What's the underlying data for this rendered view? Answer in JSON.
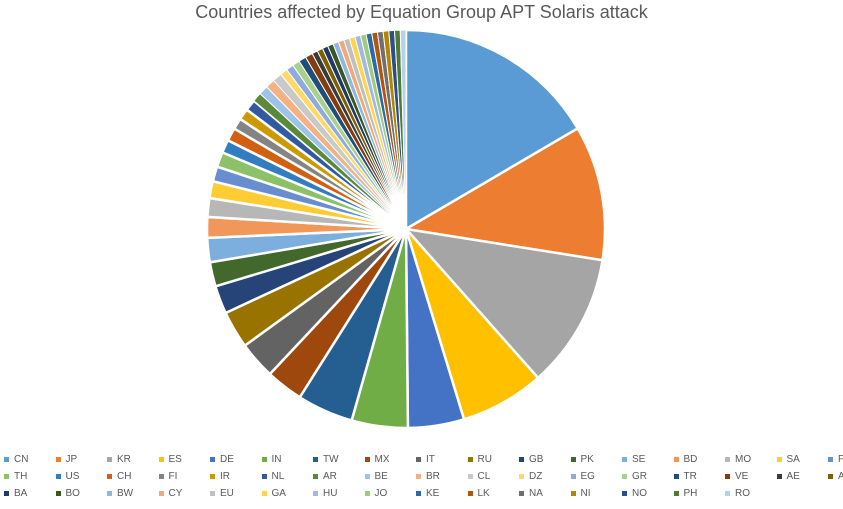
{
  "chart_data": {
    "type": "pie",
    "title": "Countries affected by Equation Group APT Solaris attack",
    "legend_position": "bottom",
    "slices": [
      {
        "label": "CN",
        "value": 0.173,
        "color": "#5B9BD5"
      },
      {
        "label": "JP",
        "value": 0.1143,
        "color": "#ED7D31"
      },
      {
        "label": "KR",
        "value": 0.1143,
        "color": "#A5A5A5"
      },
      {
        "label": "ES",
        "value": 0.0714,
        "color": "#FFC000"
      },
      {
        "label": "DE",
        "value": 0.0476,
        "color": "#4472C4"
      },
      {
        "label": "IN",
        "value": 0.0476,
        "color": "#70AD47"
      },
      {
        "label": "TW",
        "value": 0.0476,
        "color": "#255E91"
      },
      {
        "label": "MX",
        "value": 0.0317,
        "color": "#9E480E"
      },
      {
        "label": "IT",
        "value": 0.0317,
        "color": "#636363"
      },
      {
        "label": "RU",
        "value": 0.0317,
        "color": "#997300"
      },
      {
        "label": "GB",
        "value": 0.0238,
        "color": "#264478"
      },
      {
        "label": "PK",
        "value": 0.0206,
        "color": "#43682B"
      },
      {
        "label": "SE",
        "value": 0.0206,
        "color": "#7CAFDD"
      },
      {
        "label": "BD",
        "value": 0.0175,
        "color": "#F1975A"
      },
      {
        "label": "MO",
        "value": 0.0159,
        "color": "#B7B7B7"
      },
      {
        "label": "SA",
        "value": 0.0143,
        "color": "#FFCD33"
      },
      {
        "label": "PL",
        "value": 0.0127,
        "color": "#698ED0"
      },
      {
        "label": "TH",
        "value": 0.0127,
        "color": "#8CC168"
      },
      {
        "label": "US",
        "value": 0.0111,
        "color": "#327DC2"
      },
      {
        "label": "CH",
        "value": 0.0111,
        "color": "#D26012"
      },
      {
        "label": "FI",
        "value": 0.0095,
        "color": "#848484"
      },
      {
        "label": "IR",
        "value": 0.0095,
        "color": "#CC9A00"
      },
      {
        "label": "NL",
        "value": 0.0095,
        "color": "#335AA1"
      },
      {
        "label": "AR",
        "value": 0.0079,
        "color": "#5A8A39"
      },
      {
        "label": "BE",
        "value": 0.0079,
        "color": "#9DC3E6"
      },
      {
        "label": "BR",
        "value": 0.0079,
        "color": "#F4B183"
      },
      {
        "label": "CL",
        "value": 0.0079,
        "color": "#C9C9C9"
      },
      {
        "label": "DZ",
        "value": 0.0063,
        "color": "#FFD966"
      },
      {
        "label": "EG",
        "value": 0.0063,
        "color": "#8FAADC"
      },
      {
        "label": "GR",
        "value": 0.0063,
        "color": "#A9D18E"
      },
      {
        "label": "TR",
        "value": 0.0063,
        "color": "#1F4E79"
      },
      {
        "label": "VE",
        "value": 0.0063,
        "color": "#843C0C"
      },
      {
        "label": "AE",
        "value": 0.0048,
        "color": "#3B3B3B"
      },
      {
        "label": "AT",
        "value": 0.0048,
        "color": "#7F6000"
      },
      {
        "label": "BA",
        "value": 0.0048,
        "color": "#203864"
      },
      {
        "label": "BO",
        "value": 0.0048,
        "color": "#385723"
      },
      {
        "label": "BW",
        "value": 0.0048,
        "color": "#8FB8E0"
      },
      {
        "label": "CY",
        "value": 0.0048,
        "color": "#F3A878"
      },
      {
        "label": "EU",
        "value": 0.0048,
        "color": "#C0C0C0"
      },
      {
        "label": "GA",
        "value": 0.0048,
        "color": "#FFD54C"
      },
      {
        "label": "HU",
        "value": 0.0048,
        "color": "#A0B8E2"
      },
      {
        "label": "JO",
        "value": 0.0048,
        "color": "#9ECB7E"
      },
      {
        "label": "KE",
        "value": 0.0048,
        "color": "#2A6AA5"
      },
      {
        "label": "LK",
        "value": 0.0048,
        "color": "#B35410"
      },
      {
        "label": "NA",
        "value": 0.0048,
        "color": "#6F6F6F"
      },
      {
        "label": "NI",
        "value": 0.0048,
        "color": "#B38600"
      },
      {
        "label": "NO",
        "value": 0.0048,
        "color": "#2C4F8C"
      },
      {
        "label": "PH",
        "value": 0.0048,
        "color": "#4E7A31"
      },
      {
        "label": "RO",
        "value": 0.0048,
        "color": "#B4D2EE"
      }
    ]
  }
}
